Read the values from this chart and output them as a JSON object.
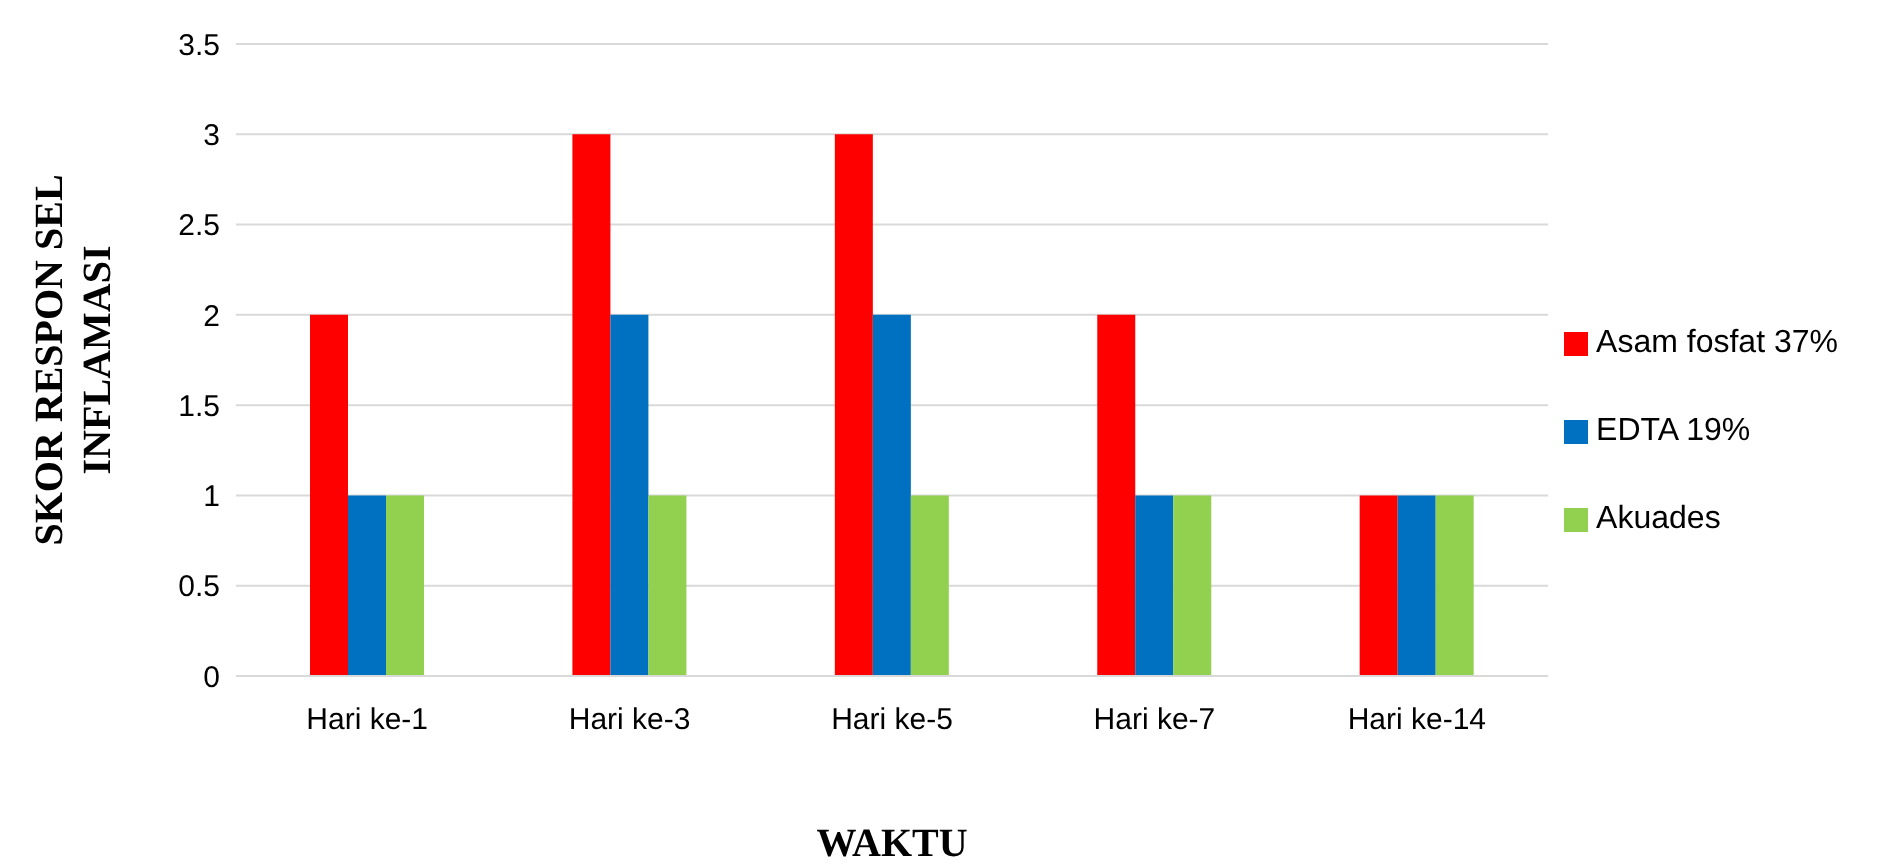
{
  "chart_data": {
    "type": "bar",
    "xlabel": "WAKTU",
    "ylabel": "SKOR RESPON SEL INFLAMASI",
    "categories": [
      "Hari ke-1",
      "Hari ke-3",
      "Hari ke-5",
      "Hari ke-7",
      "Hari ke-14"
    ],
    "series": [
      {
        "name": "Asam fosfat 37%",
        "color": "#ff0000",
        "values": [
          2,
          3,
          3,
          2,
          1
        ]
      },
      {
        "name": "EDTA 19%",
        "color": "#0070c0",
        "values": [
          1,
          2,
          2,
          1,
          1
        ]
      },
      {
        "name": "Akuades",
        "color": "#92d050",
        "values": [
          1,
          1,
          1,
          1,
          1
        ]
      }
    ],
    "ylim": [
      0,
      3.5
    ],
    "yticks": [
      0,
      0.5,
      1,
      1.5,
      2,
      2.5,
      3,
      3.5
    ],
    "grid": "y",
    "legend": "right"
  }
}
